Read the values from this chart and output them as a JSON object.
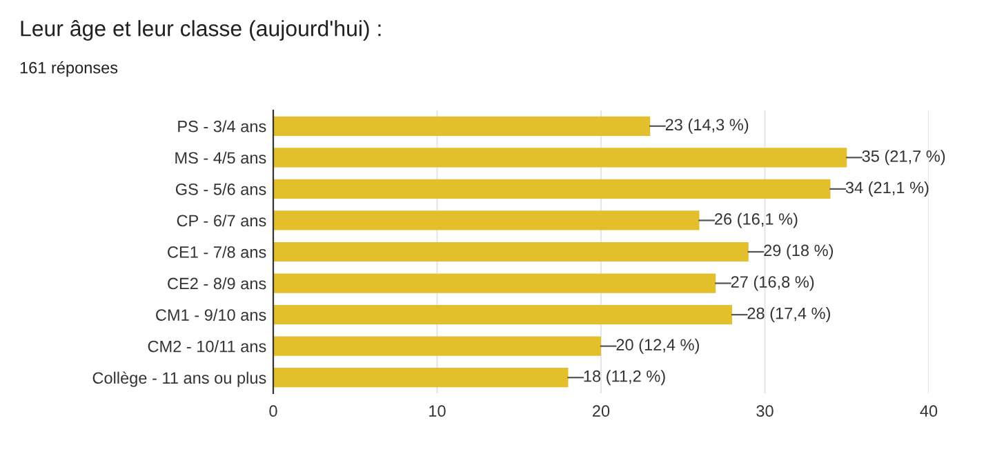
{
  "chart_data": {
    "type": "bar",
    "orientation": "horizontal",
    "title": "Leur âge et leur classe (aujourd'hui) :",
    "subtitle": "161 réponses",
    "categories": [
      "PS - 3/4 ans",
      "MS - 4/5 ans",
      "GS - 5/6 ans",
      "CP - 6/7 ans",
      "CE1 - 7/8 ans",
      "CE2 - 8/9 ans",
      "CM1 - 9/10 ans",
      "CM2 - 10/11 ans",
      "Collège - 11 ans ou plus"
    ],
    "values": [
      23,
      35,
      34,
      26,
      29,
      27,
      28,
      20,
      18
    ],
    "value_labels": [
      "23 (14,3 %)",
      "35 (21,7 %)",
      "34 (21,1 %)",
      "26 (16,1 %)",
      "29 (18 %)",
      "27 (16,8 %)",
      "28 (17,4 %)",
      "20 (12,4 %)",
      "18 (11,2 %)"
    ],
    "color": "#e2bf2b",
    "xlim": [
      0,
      40
    ],
    "xticks": [
      0,
      10,
      20,
      30,
      40
    ],
    "grid": "x"
  }
}
